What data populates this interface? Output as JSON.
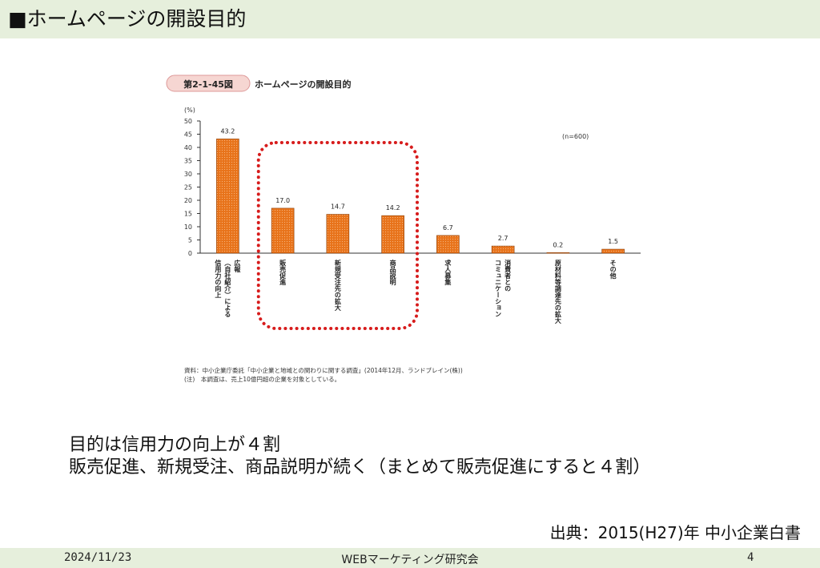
{
  "slide": {
    "title": "■ホームページの開設目的",
    "summary_line1": "目的は信用力の向上が４割",
    "summary_line2": "販売促進、新規受注、商品説明が続く（まとめて販売促進にすると４割）",
    "source": "出典：2015(H27)年 中小企業白書",
    "footer_date": "2024/11/23",
    "footer_center": "WEBマーケティング研究会",
    "page_number": "4"
  },
  "figure": {
    "badge": "第2-1-45図",
    "note_lines": [
      "資料：中小企業庁委託「中小企業と地域との関わりに関する調査」(2014年12月、ランドブレイン(株))",
      "(注)　本調査は、売上10億円超の企業を対象としている。"
    ],
    "bar_color": "#e8731a",
    "highlight_color": "#d71c1c",
    "highlighted_categories": [
      "販売促進",
      "新規受注先の拡大",
      "商品説明"
    ]
  },
  "chart_data": {
    "type": "bar",
    "title": "ホームページの開設目的",
    "ylabel": "(%)",
    "annotation": "(n=600)",
    "ylim": [
      0,
      50
    ],
    "yticks": [
      0,
      5,
      10,
      15,
      20,
      25,
      30,
      35,
      40,
      45,
      50
    ],
    "categories": [
      "広報（自社紹介）による信用力の向上",
      "販売促進",
      "新規受注先の拡大",
      "商品説明",
      "求人募集",
      "消費者とのコミュニケーション",
      "原材料等調達先の拡大",
      "その他"
    ],
    "category_columns": [
      [
        "広報",
        "（自社紹介）による",
        "信用力の向上"
      ],
      [
        "販売促進"
      ],
      [
        "新規受注先の拡大"
      ],
      [
        "商品説明"
      ],
      [
        "求人募集"
      ],
      [
        "消費者との",
        "コミュニケーション"
      ],
      [
        "原材料等調達先の拡大"
      ],
      [
        "その他"
      ]
    ],
    "values": [
      43.2,
      17.0,
      14.7,
      14.2,
      6.7,
      2.7,
      0.2,
      1.5
    ],
    "value_labels": [
      "43.2",
      "17.0",
      "14.7",
      "14.2",
      "6.7",
      "2.7",
      "0.2",
      "1.5"
    ],
    "grid": false,
    "legend": "none"
  }
}
